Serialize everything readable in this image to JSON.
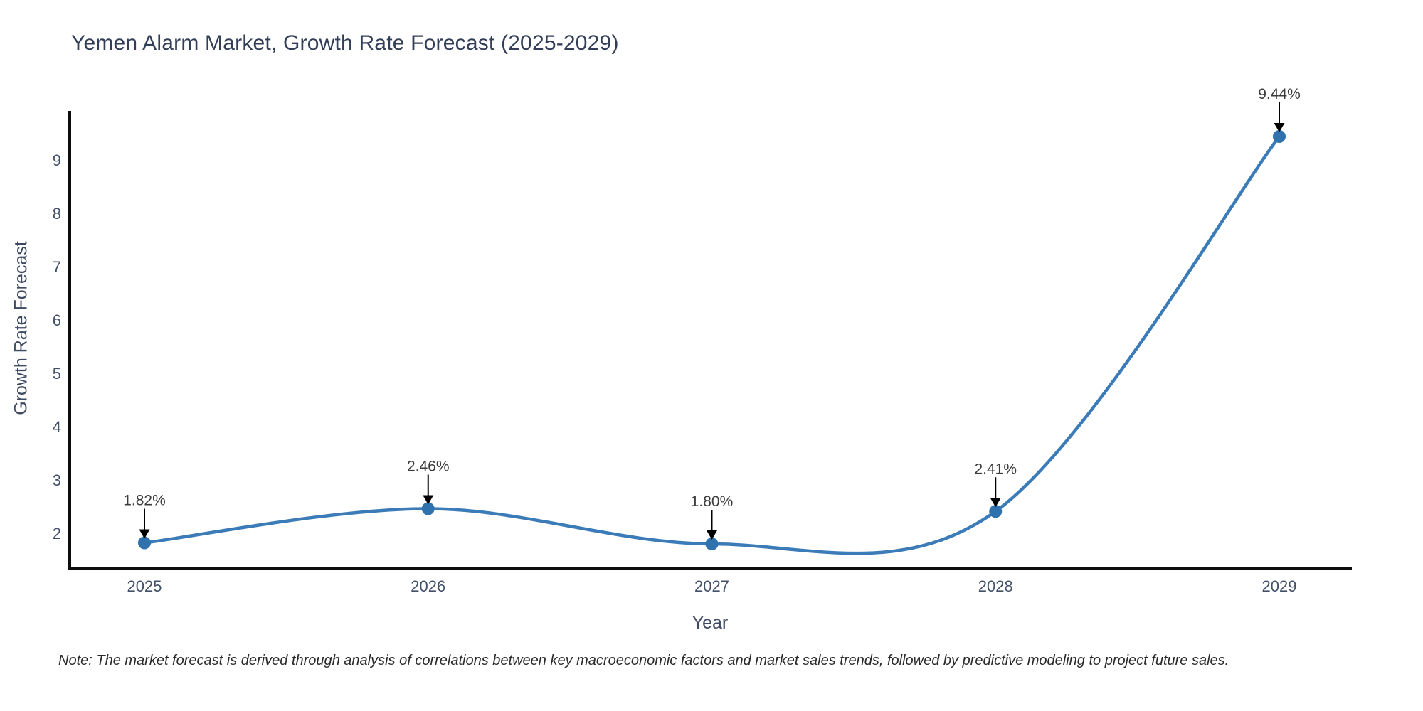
{
  "chart_data": {
    "type": "line",
    "title": "Yemen Alarm Market, Growth Rate Forecast (2025-2029)",
    "xlabel": "Year",
    "ylabel": "Growth Rate Forecast",
    "categories": [
      "2025",
      "2026",
      "2027",
      "2028",
      "2029"
    ],
    "series": [
      {
        "name": "Growth Rate Forecast",
        "values": [
          1.82,
          2.46,
          1.8,
          2.41,
          9.44
        ],
        "point_labels": [
          "1.82%",
          "2.46%",
          "1.80%",
          "2.41%",
          "9.44%"
        ]
      }
    ],
    "yticks": [
      2,
      3,
      4,
      5,
      6,
      7,
      8,
      9
    ],
    "ylim": [
      1.35,
      9.92
    ],
    "grid": false,
    "legend_position": "none",
    "line_shape": "spline",
    "colors": {
      "line": "#3b7cb8",
      "marker": "#3072ae",
      "axis": "#0d0d0d",
      "tick_text": "#42506a",
      "annotation_text": "#3c3c3c",
      "annotation_arrow": "#000000"
    },
    "note": "Note: The market forecast is derived through analysis of correlations between key macroeconomic factors and market sales trends, followed by predictive modeling to project future sales."
  }
}
